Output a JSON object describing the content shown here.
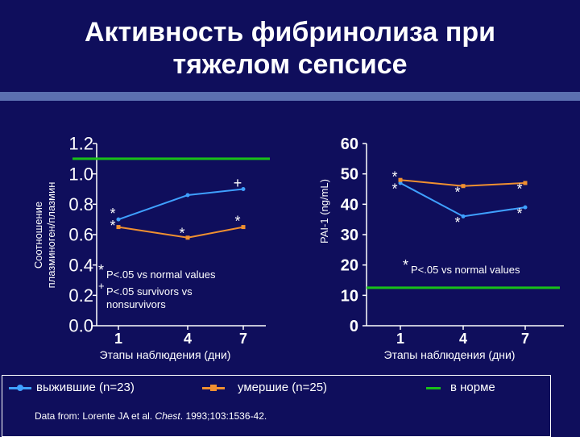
{
  "title_line1": "Активность фибринолиза при",
  "title_line2": "тяжелом сепсисе",
  "colors": {
    "background": "#0f0e5c",
    "survivors": "#3fa0ff",
    "nonsurvivors": "#f09030",
    "normal": "#19c019",
    "separator": "#5b6fb0"
  },
  "chart_data": [
    {
      "type": "line",
      "ylabel_line1": "Соотношение",
      "ylabel_line2": "плазминоген/плазмин",
      "xlabel": "Этапы наблюдения (дни)",
      "x": [
        1,
        4,
        7
      ],
      "xticklabels": [
        "1",
        "4",
        "7"
      ],
      "yticks": [
        "0.0",
        "0.2",
        "0.4",
        "0.6",
        "0.8",
        "1.0",
        "1.2"
      ],
      "ylim": [
        0,
        1.2
      ],
      "normal_value": 1.1,
      "series": [
        {
          "key": "survivors",
          "values": [
            0.7,
            0.86,
            0.9
          ]
        },
        {
          "key": "nonsurvivors",
          "values": [
            0.65,
            0.58,
            0.65
          ]
        }
      ],
      "marks": [
        {
          "text": "*",
          "x": 1,
          "y": 0.76
        },
        {
          "text": "*",
          "x": 1,
          "y": 0.68
        },
        {
          "text": "*",
          "x": 4,
          "y": 0.63
        },
        {
          "text": "*",
          "x": 7,
          "y": 0.71
        },
        {
          "text": "+",
          "x": 7,
          "y": 0.96
        }
      ],
      "notes": {
        "star": "*",
        "note1": "P<.05 vs normal values",
        "plus": "+",
        "note2_line1": "P<.05 survivors vs",
        "note2_line2": "nonsurvivors"
      }
    },
    {
      "type": "line",
      "ylabel": "PAI-1 (ng/mL)",
      "xlabel": "Этапы наблюдения (дни)",
      "x": [
        1,
        4,
        7
      ],
      "xticklabels": [
        "1",
        "4",
        "7"
      ],
      "yticks": [
        "0",
        "10",
        "20",
        "30",
        "40",
        "50",
        "60"
      ],
      "ylim": [
        0,
        60
      ],
      "normal_value": 12.5,
      "series": [
        {
          "key": "survivors",
          "values": [
            47,
            36,
            39
          ]
        },
        {
          "key": "nonsurvivors",
          "values": [
            48,
            46,
            47
          ]
        }
      ],
      "marks": [
        {
          "text": "*",
          "x": 1,
          "y": 50
        },
        {
          "text": "*",
          "x": 1,
          "y": 46
        },
        {
          "text": "*",
          "x": 4,
          "y": 45
        },
        {
          "text": "*",
          "x": 4,
          "y": 35
        },
        {
          "text": "*",
          "x": 7,
          "y": 46
        },
        {
          "text": "*",
          "x": 7,
          "y": 38
        }
      ],
      "notes": {
        "star": "*",
        "note1": "P<.05 vs normal values"
      }
    }
  ],
  "legend": {
    "survivors": "выжившие (n=23)",
    "nonsurvivors": "умершие (n=25)",
    "normal": "в норме",
    "source_prefix": "Data from: Lorente JA et al. ",
    "source_journal": "Chest",
    "source_suffix": ". 1993;103:1536-42."
  }
}
